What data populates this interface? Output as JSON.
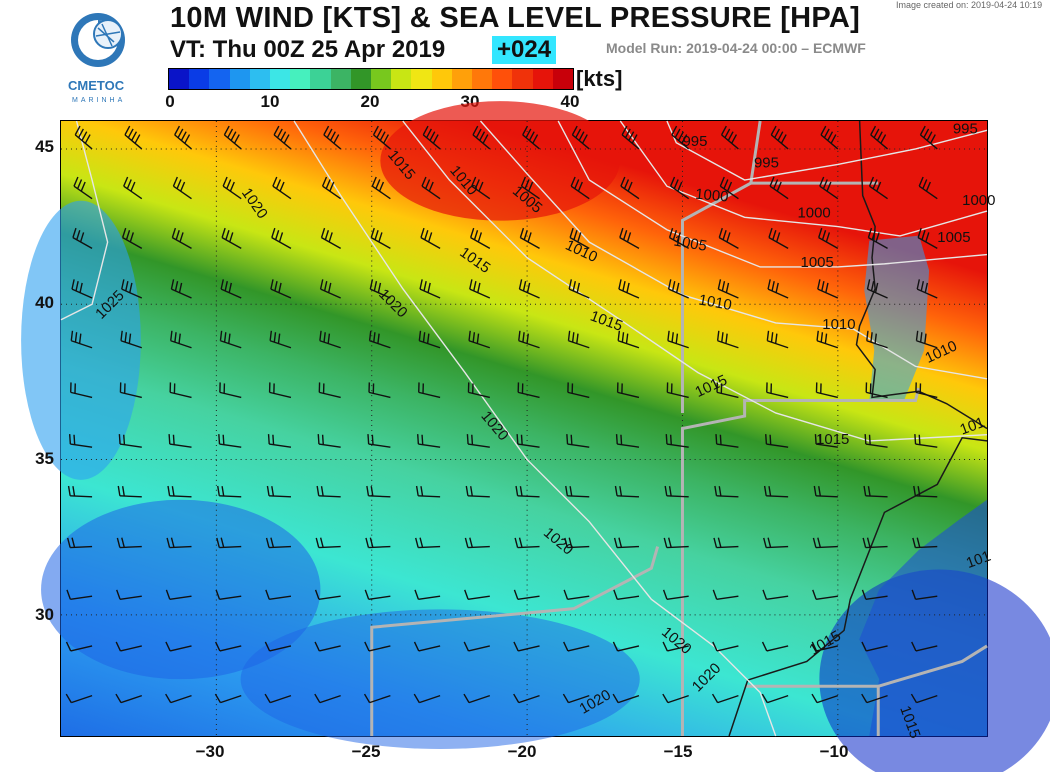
{
  "header": {
    "title": "10M WIND [KTS] & SEA LEVEL PRESSURE [HPA]",
    "valid_time": "VT: Thu 00Z 25 Apr 2019",
    "forecast_hour": "+024",
    "model_run": "Model Run: 2019-04-24 00:00 – ECMWF",
    "created": "Image created on: 2019-04-24 10:19"
  },
  "logo": {
    "name": "CMETOC",
    "sub": "MARINHA"
  },
  "colorbar": {
    "unit": "[kts]",
    "ticks": [
      "0",
      "10",
      "20",
      "30",
      "40"
    ],
    "colors": [
      "#0a14c8",
      "#0a3ce6",
      "#1464f0",
      "#1e96f0",
      "#2dbef0",
      "#3ce6e6",
      "#46f0be",
      "#3cd296",
      "#3cb464",
      "#329628",
      "#78c81e",
      "#c8e614",
      "#f0e614",
      "#ffc80a",
      "#ffa00a",
      "#ff780a",
      "#ff500a",
      "#f0320a",
      "#e6140a",
      "#c8000a"
    ]
  },
  "map": {
    "lon_ticks": [
      "−30",
      "−25",
      "−20",
      "−15",
      "−10"
    ],
    "lat_ticks": [
      "45",
      "40",
      "35",
      "30"
    ],
    "lon_range": [
      -35,
      -5.2
    ],
    "lat_range": [
      26.1,
      45.9
    ],
    "isobars": [
      {
        "label": "995",
        "points": [
          [
            -15.5,
            45.9
          ],
          [
            -15.2,
            45.2
          ],
          [
            -13,
            44
          ],
          [
            -10,
            44.5
          ],
          [
            -7.5,
            45
          ],
          [
            -5.2,
            45.6
          ]
        ]
      },
      {
        "label": "1000",
        "points": [
          [
            -17,
            45.9
          ],
          [
            -15.5,
            43.8
          ],
          [
            -13,
            42.8
          ],
          [
            -10,
            42.5
          ],
          [
            -8,
            42.2
          ],
          [
            -5.2,
            43
          ]
        ]
      },
      {
        "label": "1005",
        "points": [
          [
            -19,
            45.9
          ],
          [
            -18,
            44
          ],
          [
            -15.5,
            42.4
          ],
          [
            -12.5,
            41.2
          ],
          [
            -10,
            41.2
          ],
          [
            -8.5,
            41.3
          ],
          [
            -5.2,
            41.6
          ]
        ]
      },
      {
        "label": "1010",
        "points": [
          [
            -21.5,
            45.9
          ],
          [
            -20,
            44.2
          ],
          [
            -18,
            42
          ],
          [
            -15,
            40.3
          ],
          [
            -12,
            39.4
          ],
          [
            -9.5,
            39.2
          ],
          [
            -7.5,
            38
          ],
          [
            -5.2,
            37.6
          ]
        ]
      },
      {
        "label": "1015",
        "points": [
          [
            -24,
            45.9
          ],
          [
            -22.5,
            44
          ],
          [
            -20,
            41.5
          ],
          [
            -17,
            39.5
          ],
          [
            -14.5,
            37.8
          ],
          [
            -12,
            36.5
          ],
          [
            -9,
            35.6
          ],
          [
            -5.2,
            35.8
          ]
        ]
      },
      {
        "label": "1020",
        "points": [
          [
            -27.5,
            45.9
          ],
          [
            -26,
            43.5
          ],
          [
            -24,
            40.5
          ],
          [
            -22,
            37.8
          ],
          [
            -20,
            35
          ],
          [
            -18,
            33
          ],
          [
            -16,
            30.5
          ],
          [
            -14,
            29
          ],
          [
            -12.5,
            27.5
          ],
          [
            -12,
            26.1
          ]
        ]
      },
      {
        "label": "1025",
        "points": [
          [
            -35,
            39.5
          ],
          [
            -34,
            40
          ],
          [
            -33.5,
            42
          ],
          [
            -34,
            44
          ],
          [
            -34.5,
            45.9
          ]
        ]
      }
    ],
    "isobar_labels": [
      {
        "text": "1025",
        "lon": -33.7,
        "lat": 39.5,
        "rot": -45
      },
      {
        "text": "1020",
        "lon": -29.2,
        "lat": 43.6,
        "rot": 55
      },
      {
        "text": "1015",
        "lon": -24.5,
        "lat": 44.8,
        "rot": 50
      },
      {
        "text": "1010",
        "lon": -22.5,
        "lat": 44.3,
        "rot": 50
      },
      {
        "text": "1005",
        "lon": -20.5,
        "lat": 43.6,
        "rot": 40
      },
      {
        "text": "1015",
        "lon": -22.2,
        "lat": 41.6,
        "rot": 35
      },
      {
        "text": "1010",
        "lon": -18.8,
        "lat": 41.8,
        "rot": 25
      },
      {
        "text": "1020",
        "lon": -24.8,
        "lat": 40.3,
        "rot": 45
      },
      {
        "text": "1015",
        "lon": -18,
        "lat": 39.5,
        "rot": 20
      },
      {
        "text": "1010",
        "lon": -14.5,
        "lat": 40,
        "rot": 10
      },
      {
        "text": "1005",
        "lon": -15.3,
        "lat": 41.9,
        "rot": 10
      },
      {
        "text": "1000",
        "lon": -14.6,
        "lat": 43.4,
        "rot": 5
      },
      {
        "text": "995",
        "lon": -15,
        "lat": 45.1,
        "rot": 0
      },
      {
        "text": "995",
        "lon": -12.7,
        "lat": 44.4,
        "rot": 0
      },
      {
        "text": "1000",
        "lon": -11.3,
        "lat": 42.8,
        "rot": 0
      },
      {
        "text": "1005",
        "lon": -11.2,
        "lat": 41.2,
        "rot": 0
      },
      {
        "text": "1010",
        "lon": -10.5,
        "lat": 39.2,
        "rot": 0
      },
      {
        "text": "995",
        "lon": -6.3,
        "lat": 45.5,
        "rot": 0
      },
      {
        "text": "1000",
        "lon": -6,
        "lat": 43.2,
        "rot": 0
      },
      {
        "text": "1005",
        "lon": -6.8,
        "lat": 42,
        "rot": 0
      },
      {
        "text": "1010",
        "lon": -7.1,
        "lat": 38.1,
        "rot": -25
      },
      {
        "text": "1015",
        "lon": -14.5,
        "lat": 37,
        "rot": -25
      },
      {
        "text": "1015",
        "lon": -10.7,
        "lat": 35.5,
        "rot": 0
      },
      {
        "text": "1020",
        "lon": -21.5,
        "lat": 36.4,
        "rot": 50
      },
      {
        "text": "1020",
        "lon": -19.5,
        "lat": 32.6,
        "rot": 40
      },
      {
        "text": "1020",
        "lon": -15.7,
        "lat": 29.4,
        "rot": 40
      },
      {
        "text": "1020",
        "lon": -14.5,
        "lat": 27.5,
        "rot": -45
      },
      {
        "text": "1020",
        "lon": -18.2,
        "lat": 26.8,
        "rot": -30
      },
      {
        "text": "1015",
        "lon": -10.8,
        "lat": 28.7,
        "rot": -30
      },
      {
        "text": "1015",
        "lon": -8,
        "lat": 27,
        "rot": 70
      },
      {
        "text": "101",
        "lon": -5.8,
        "lat": 31.5,
        "rot": -20
      },
      {
        "text": "101",
        "lon": -6,
        "lat": 35.8,
        "rot": -20
      }
    ]
  }
}
